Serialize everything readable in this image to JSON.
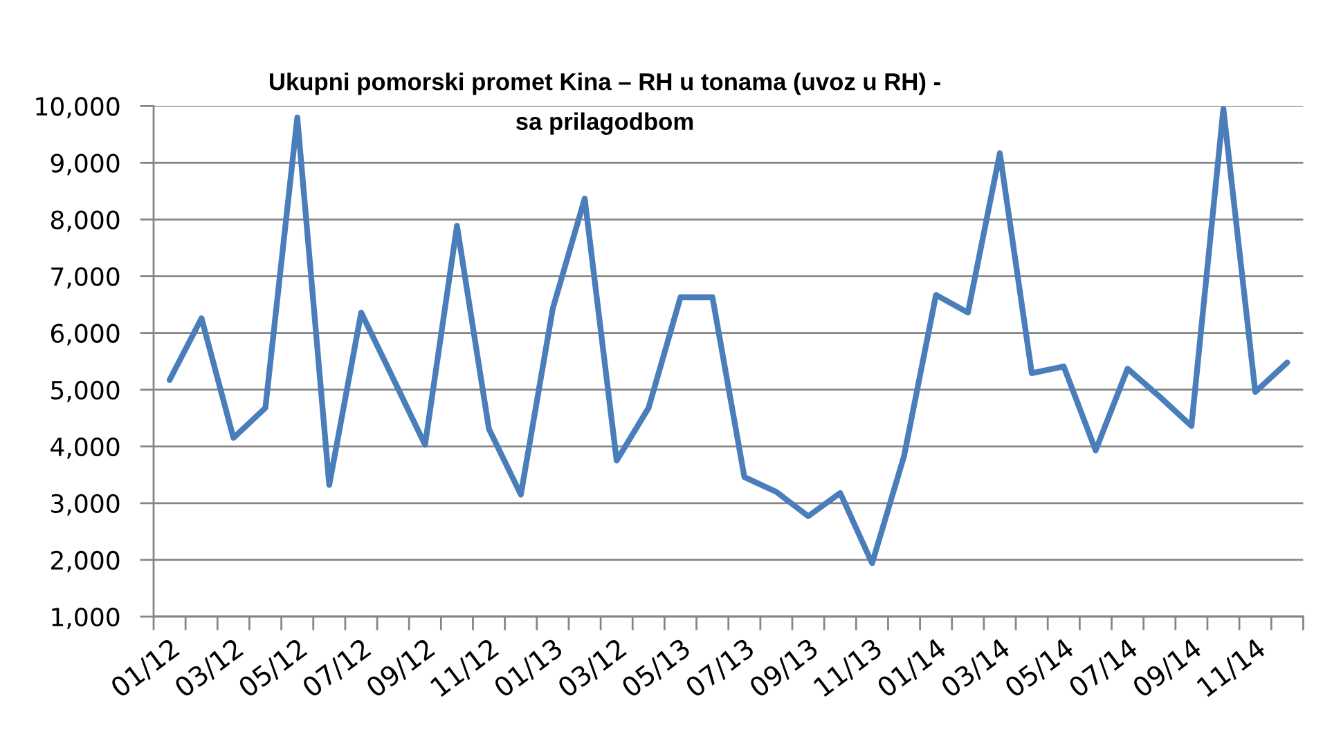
{
  "chart_data": {
    "type": "line",
    "title": "Ukupni pomorski promet Kina – RH u tonama (uvoz u RH) -\nsa prilagodbom",
    "categories": [
      "01/12",
      null,
      "03/12",
      null,
      "05/12",
      null,
      "07/12",
      null,
      "09/12",
      null,
      "11/12",
      null,
      "01/13",
      null,
      "03/12",
      null,
      "05/13",
      null,
      "07/13",
      null,
      "09/13",
      null,
      "11/13",
      null,
      "01/14",
      null,
      "03/14",
      null,
      "05/14",
      null,
      "07/14",
      null,
      "09/14",
      null,
      "11/14",
      null
    ],
    "series": [
      {
        "color": "#4a7ebb",
        "values": [
          5170,
          6260,
          4150,
          4680,
          9800,
          3320,
          6360,
          5200,
          4030,
          7890,
          4310,
          3150,
          6430,
          8370,
          3750,
          4680,
          6630,
          6630,
          3460,
          3200,
          2770,
          3180,
          1940,
          3830,
          6670,
          6360,
          9170,
          5290,
          5410,
          3930,
          5370,
          4880,
          4360,
          9950,
          4960,
          5480
        ]
      }
    ],
    "ylim": [
      1000,
      10000
    ],
    "yticks": [
      {
        "value": 1000,
        "label": "1,000"
      },
      {
        "value": 2000,
        "label": "2,000"
      },
      {
        "value": 3000,
        "label": "3,000"
      },
      {
        "value": 4000,
        "label": "4,000"
      },
      {
        "value": 5000,
        "label": "5,000"
      },
      {
        "value": 6000,
        "label": "6,000"
      },
      {
        "value": 7000,
        "label": "7,000"
      },
      {
        "value": 8000,
        "label": "8,000"
      },
      {
        "value": 9000,
        "label": "9,000"
      },
      {
        "value": 10000,
        "label": "10,000"
      }
    ],
    "grid": "y",
    "marker": "none",
    "line_style": "solid"
  }
}
